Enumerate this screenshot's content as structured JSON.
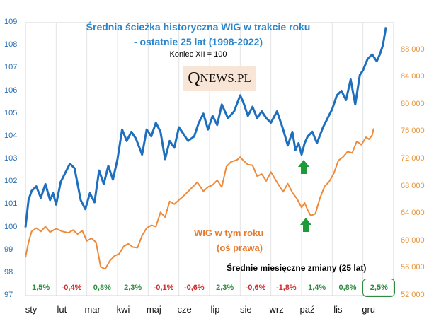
{
  "chart_data": {
    "type": "line",
    "title": "Średnia ścieżka historyczna WIG w trakcie roku",
    "subtitle": "- ostatnie 25 lat (1998-2022)",
    "note": "Koniec XII = 100",
    "watermark": "QNEWS.PL",
    "months": [
      "sty",
      "lut",
      "mar",
      "kwi",
      "maj",
      "cze",
      "lip",
      "sie",
      "wrz",
      "paź",
      "lis",
      "gru"
    ],
    "y_left": {
      "min": 97,
      "max": 109,
      "ticks": [
        "97",
        "98",
        "99",
        "100",
        "101",
        "102",
        "103",
        "104",
        "105",
        "106",
        "107",
        "108",
        "109"
      ]
    },
    "y_right": {
      "min": 52000,
      "max": 92000,
      "ticks": [
        "52 000",
        "56 000",
        "60 000",
        "64 000",
        "68 000",
        "72 000",
        "76 000",
        "80 000",
        "84 000",
        "88 000"
      ]
    },
    "series": [
      {
        "name": "Średnia ścieżka historyczna WIG",
        "axis": "left",
        "color": "#1f6fbf",
        "x": [
          0,
          0.1,
          0.2,
          0.35,
          0.5,
          0.65,
          0.8,
          0.9,
          1.0,
          1.15,
          1.3,
          1.45,
          1.6,
          1.8,
          1.95,
          2.1,
          2.25,
          2.4,
          2.55,
          2.7,
          2.85,
          3.0,
          3.15,
          3.3,
          3.45,
          3.6,
          3.8,
          3.95,
          4.1,
          4.25,
          4.4,
          4.55,
          4.7,
          4.85,
          5.0,
          5.15,
          5.3,
          5.5,
          5.65,
          5.8,
          5.95,
          6.1,
          6.25,
          6.4,
          6.6,
          6.8,
          7.0,
          7.1,
          7.25,
          7.4,
          7.55,
          7.7,
          7.85,
          8.0,
          8.2,
          8.4,
          8.55,
          8.7,
          8.8,
          8.9,
          9.0,
          9.1,
          9.2,
          9.35,
          9.5,
          9.7,
          9.85,
          10.0,
          10.15,
          10.3,
          10.45,
          10.6,
          10.75,
          10.9,
          11.0,
          11.15,
          11.3,
          11.45,
          11.55,
          11.65,
          11.75
        ],
        "values": [
          100.0,
          101.2,
          101.6,
          101.8,
          101.3,
          101.9,
          101.2,
          101.5,
          101.0,
          102.0,
          102.4,
          102.8,
          102.6,
          101.2,
          100.8,
          101.5,
          101.1,
          102.5,
          101.9,
          102.7,
          102.1,
          103.0,
          104.3,
          103.8,
          104.2,
          103.9,
          103.2,
          104.3,
          104.0,
          104.6,
          104.2,
          103.0,
          103.8,
          103.5,
          104.4,
          104.1,
          103.8,
          104.0,
          104.6,
          105.0,
          104.3,
          104.9,
          104.5,
          105.4,
          104.8,
          105.1,
          105.8,
          105.5,
          104.9,
          105.3,
          104.8,
          105.1,
          104.8,
          104.6,
          105.1,
          104.3,
          103.6,
          104.2,
          103.4,
          103.7,
          103.2,
          103.7,
          104.0,
          104.2,
          103.7,
          104.4,
          104.8,
          105.2,
          105.8,
          106.0,
          105.6,
          106.5,
          105.4,
          106.7,
          106.9,
          107.4,
          107.6,
          107.3,
          107.6,
          108.0,
          108.8
        ]
      },
      {
        "name": "WIG w tym roku (oś prawa)",
        "axis": "right",
        "color": "#ee8a3a",
        "x": [
          0,
          0.1,
          0.2,
          0.35,
          0.5,
          0.65,
          0.8,
          1.0,
          1.2,
          1.4,
          1.55,
          1.7,
          1.85,
          2.0,
          2.15,
          2.3,
          2.45,
          2.6,
          2.75,
          2.9,
          3.05,
          3.2,
          3.35,
          3.5,
          3.65,
          3.8,
          3.95,
          4.1,
          4.25,
          4.4,
          4.55,
          4.7,
          4.85,
          5.0,
          5.2,
          5.4,
          5.6,
          5.8,
          5.95,
          6.1,
          6.25,
          6.4,
          6.55,
          6.7,
          6.9,
          7.0,
          7.1,
          7.25,
          7.4,
          7.55,
          7.7,
          7.85,
          8.0,
          8.2,
          8.4,
          8.55,
          8.7,
          8.85,
          9.0,
          9.1,
          9.2,
          9.3,
          9.45,
          9.6,
          9.75,
          9.9,
          10.05,
          10.2,
          10.35,
          10.5,
          10.65,
          10.8,
          10.95,
          11.1,
          11.2,
          11.3,
          11.35
        ],
        "values": [
          57600,
          59800,
          61400,
          61900,
          61400,
          62100,
          61300,
          61800,
          61400,
          61200,
          61600,
          61000,
          61500,
          60000,
          60400,
          59800,
          56200,
          55900,
          57100,
          57800,
          58100,
          59200,
          59600,
          59100,
          59000,
          60800,
          61900,
          62300,
          62100,
          64200,
          63500,
          65800,
          65400,
          66000,
          66800,
          67700,
          68600,
          67300,
          67900,
          68200,
          68900,
          67900,
          70900,
          71600,
          71900,
          72300,
          71800,
          71200,
          71100,
          69500,
          69800,
          68800,
          70100,
          68600,
          67200,
          68400,
          67100,
          66200,
          64900,
          65600,
          64500,
          63700,
          64000,
          66300,
          68000,
          68700,
          69900,
          71800,
          72300,
          73100,
          72900,
          74600,
          74100,
          75200,
          74900,
          75500,
          76500
        ]
      }
    ],
    "annotations": {
      "wig_label_line1": "WIG w tym roku",
      "wig_label_line2": "(oś prawa)"
    },
    "monthly_changes": {
      "title": "Średnie miesięczne zmiany (25 lat)",
      "values": [
        1.5,
        -0.4,
        0.8,
        2.3,
        -0.1,
        -0.6,
        2.3,
        -0.6,
        -1.8,
        1.4,
        0.8,
        2.5
      ],
      "labels": [
        "1,5%",
        "-0,4%",
        "0,8%",
        "2,3%",
        "-0,1%",
        "-0,6%",
        "2,3%",
        "-0,6%",
        "-1,8%",
        "1,4%",
        "0,8%",
        "2,5%"
      ]
    }
  },
  "colors": {
    "blue": "#1f6fbf",
    "orange": "#ee8a3a",
    "green_arrow": "#1f9a3a",
    "positive": "#2e8b40",
    "negative": "#d12a2a"
  }
}
